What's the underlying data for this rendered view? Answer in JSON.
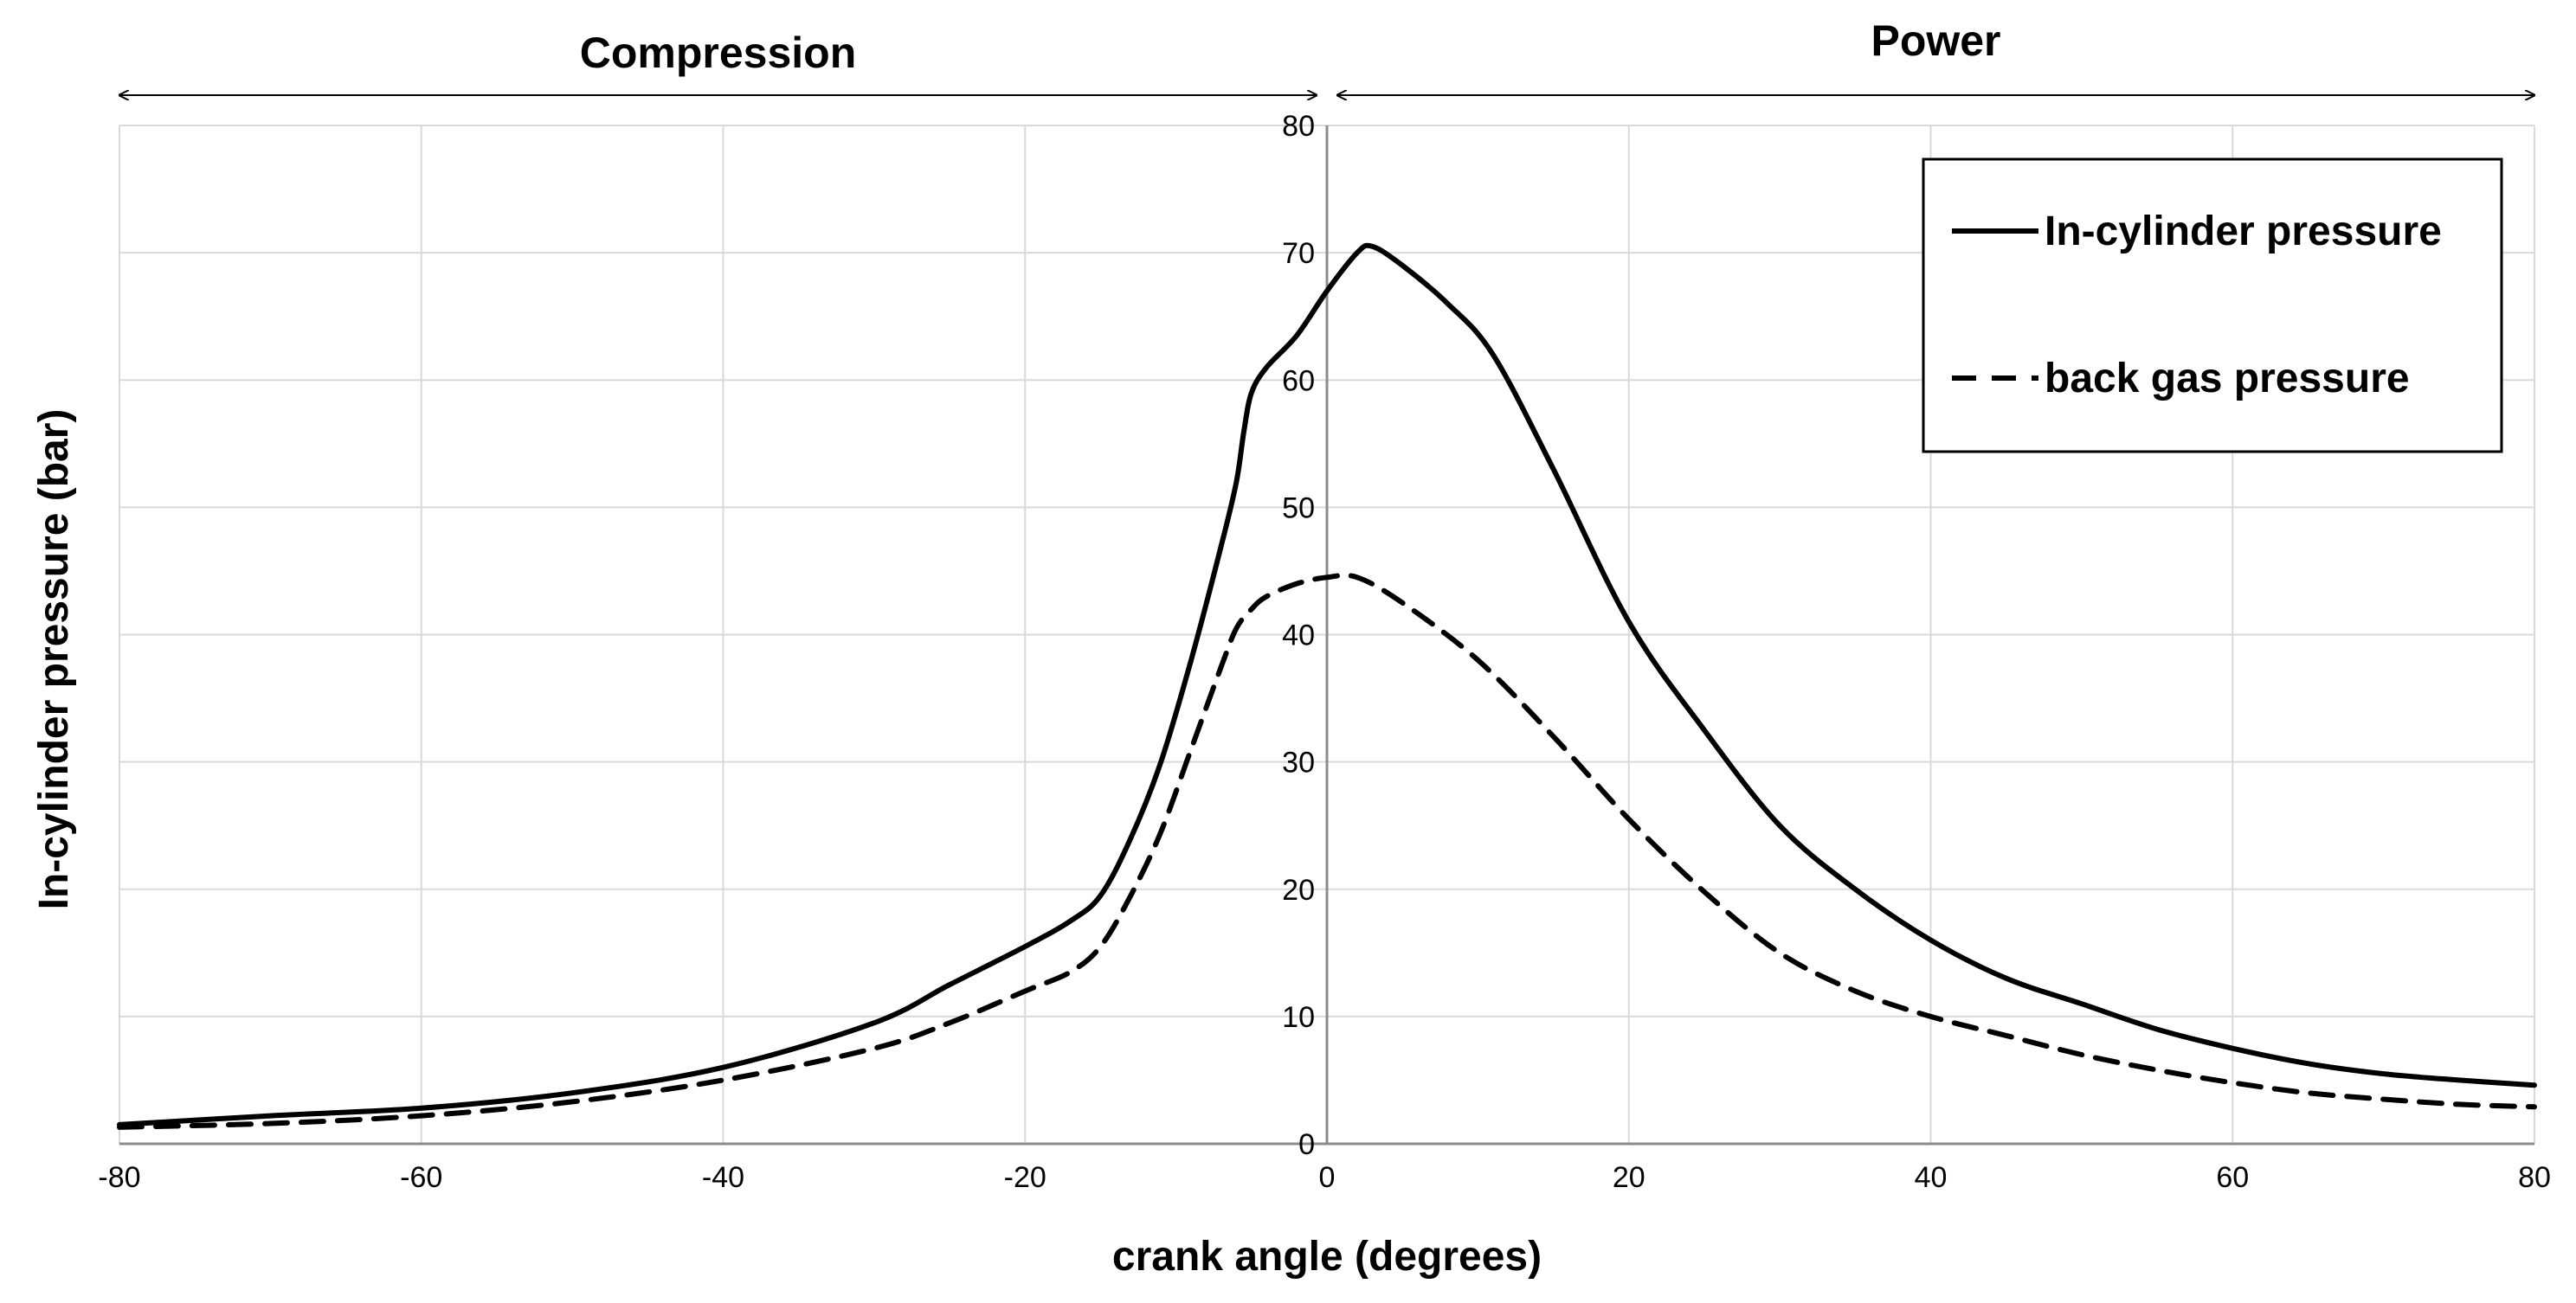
{
  "chart_data": {
    "type": "line",
    "xlabel": "crank angle (degrees)",
    "ylabel": "In-cylinder  pressure (bar)",
    "xlim": [
      -80,
      80
    ],
    "ylim": [
      0,
      80
    ],
    "x_ticks": [
      -80,
      -60,
      -40,
      -20,
      0,
      20,
      40,
      60,
      80
    ],
    "x_tick_labels": [
      "-80",
      "-60",
      "-40",
      "-20",
      "0",
      "20",
      "40",
      "60",
      "80"
    ],
    "y_ticks": [
      0,
      10,
      20,
      30,
      40,
      50,
      60,
      70,
      80
    ],
    "y_tick_labels": [
      "0",
      "10",
      "20",
      "30",
      "40",
      "50",
      "60",
      "70",
      "80"
    ],
    "grid": true,
    "legend_position": "top-right",
    "phases": [
      {
        "label": "Compression",
        "from": -80,
        "to": 0
      },
      {
        "label": "Power",
        "from": 0,
        "to": 80
      }
    ],
    "series": [
      {
        "name": "In-cylinder pressure",
        "style": "solid",
        "color": "#000000",
        "x": [
          -80,
          -70,
          -60,
          -50,
          -40,
          -30,
          -25,
          -20,
          -17,
          -15,
          -13,
          -11,
          -9,
          -7,
          -6,
          -5.5,
          -5,
          -4,
          -2,
          0,
          2,
          3,
          5,
          8,
          11,
          15,
          20,
          25,
          30,
          35,
          40,
          45,
          50,
          55,
          60,
          65,
          70,
          75,
          80
        ],
        "y": [
          1.5,
          2.2,
          2.8,
          4.0,
          6.0,
          9.5,
          12.5,
          15.5,
          17.5,
          19.5,
          24.0,
          30.0,
          38.0,
          47.0,
          52.0,
          56.0,
          59.0,
          61.0,
          63.5,
          67.0,
          70.0,
          70.5,
          69.0,
          66.0,
          62.0,
          53.0,
          41.0,
          32.5,
          25.0,
          20.0,
          16.0,
          13.0,
          11.0,
          9.0,
          7.5,
          6.3,
          5.5,
          5.0,
          4.6
        ]
      },
      {
        "name": "back gas pressure",
        "style": "dashed",
        "color": "#000000",
        "x": [
          -80,
          -70,
          -60,
          -50,
          -40,
          -30,
          -25,
          -20,
          -17,
          -15,
          -13,
          -11,
          -9,
          -7,
          -6,
          -5,
          -4,
          -2,
          0,
          2,
          5,
          10,
          15,
          20,
          25,
          30,
          35,
          40,
          45,
          50,
          55,
          60,
          65,
          70,
          75,
          80
        ],
        "y": [
          1.3,
          1.6,
          2.2,
          3.3,
          5.0,
          7.5,
          9.5,
          12.0,
          13.5,
          15.5,
          19.5,
          24.5,
          31.0,
          37.5,
          40.5,
          42.0,
          43.0,
          44.0,
          44.5,
          44.5,
          42.5,
          38.0,
          32.0,
          25.5,
          19.8,
          15.0,
          12.0,
          10.0,
          8.5,
          7.0,
          5.8,
          4.8,
          4.0,
          3.5,
          3.1,
          2.9
        ]
      }
    ]
  }
}
